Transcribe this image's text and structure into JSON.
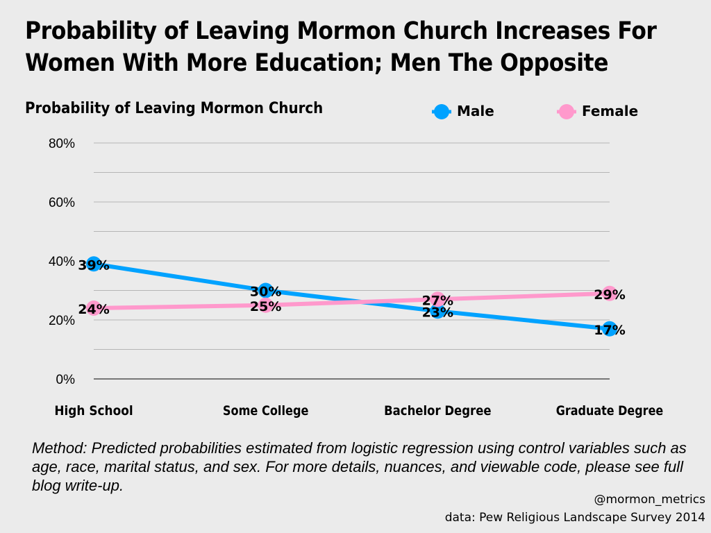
{
  "chart_data": {
    "type": "line",
    "title": "Probability of Leaving Mormon Church Increases For Women With More Education; Men The Opposite",
    "ylabel": "Probability of Leaving Mormon Church",
    "categories": [
      "High School",
      "Some College",
      "Bachelor Degree",
      "Graduate Degree"
    ],
    "ylim": [
      0,
      80
    ],
    "yticks": [
      0,
      20,
      40,
      60,
      80
    ],
    "ytick_labels": [
      "0%",
      "20%",
      "40%",
      "60%",
      "80%"
    ],
    "grid": true,
    "legend": "top-right",
    "series": [
      {
        "name": "Male",
        "color": "#00a2ff",
        "values": [
          39,
          30,
          23,
          17
        ],
        "labels": [
          "39%",
          "30%",
          "23%",
          "17%"
        ]
      },
      {
        "name": "Female",
        "color": "#ff99cc",
        "values": [
          24,
          25,
          27,
          29
        ],
        "labels": [
          "24%",
          "25%",
          "27%",
          "29%"
        ]
      }
    ]
  },
  "note": "Method: Predicted probabilities estimated from logistic regression using control variables such as age, race, marital status, and sex. For more details, nuances, and viewable code, please see full blog write-up.",
  "credit": "@mormon_metrics",
  "source": "data: Pew Religious Landscape Survey 2014"
}
